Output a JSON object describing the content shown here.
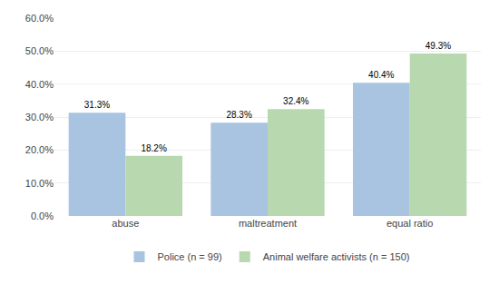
{
  "chart_data": {
    "type": "bar",
    "categories": [
      "abuse",
      "maltreatment",
      "equal ratio"
    ],
    "series": [
      {
        "name": "Police (n = 99)",
        "color": "#a8c4e0",
        "values": [
          31.3,
          28.3,
          40.4
        ],
        "value_labels": [
          "31.3%",
          "28.3%",
          "40.4%"
        ]
      },
      {
        "name": "Animal welfare activists (n = 150)",
        "color": "#b8d8b0",
        "values": [
          18.2,
          32.4,
          49.3
        ],
        "value_labels": [
          "18.2%",
          "32.4%",
          "49.3%"
        ]
      }
    ],
    "ylim": [
      0,
      60
    ],
    "yticks": [
      {
        "value": 0,
        "label": "0.0%"
      },
      {
        "value": 10,
        "label": "10.0%"
      },
      {
        "value": 20,
        "label": "20.0%"
      },
      {
        "value": 30,
        "label": "30.0%"
      },
      {
        "value": 40,
        "label": "40.0%"
      },
      {
        "value": 50,
        "label": "50.0%"
      },
      {
        "value": 60,
        "label": "60.0%"
      }
    ],
    "grid": true,
    "legend": "lower center",
    "data_labels": true
  }
}
